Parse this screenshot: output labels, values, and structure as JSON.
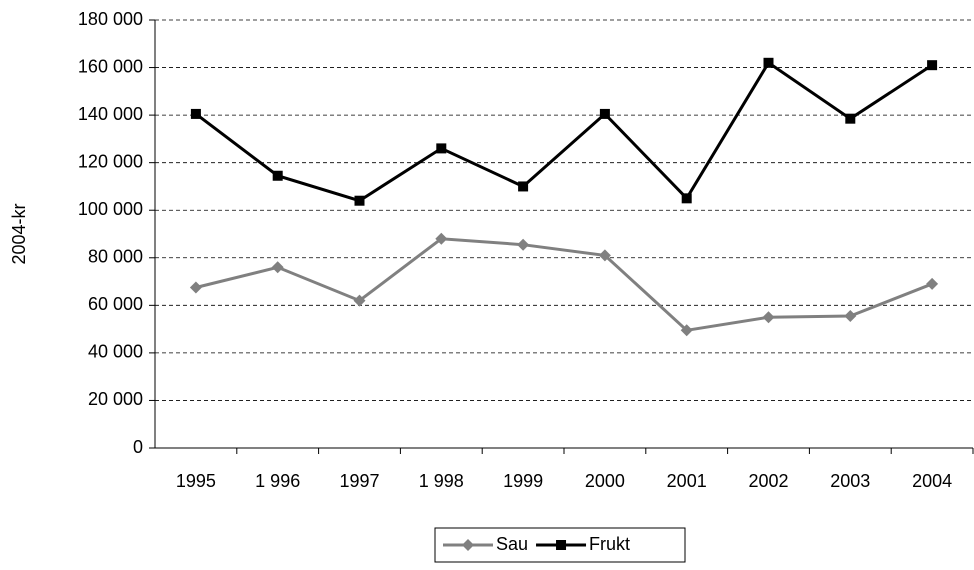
{
  "chart_data": {
    "type": "line",
    "y_label": "2004-kr",
    "categories": [
      "1995",
      "1 996",
      "1997",
      "1 998",
      "1999",
      "2000",
      "2001",
      "2002",
      "2003",
      "2004"
    ],
    "series": [
      {
        "name": "Sau",
        "color": "#808080",
        "marker": "diamond",
        "values": [
          67500,
          76000,
          62000,
          88000,
          85500,
          81000,
          49500,
          55000,
          55500,
          69000
        ]
      },
      {
        "name": "Frukt",
        "color": "#000000",
        "marker": "square",
        "values": [
          140500,
          114500,
          104000,
          126000,
          110000,
          140500,
          105000,
          162000,
          138500,
          161000
        ]
      }
    ],
    "ylim": [
      0,
      180000
    ],
    "yticks": [
      0,
      {
        "value": 20000,
        "label": "20 000"
      },
      {
        "value": 40000,
        "label": "40 000"
      },
      {
        "value": 60000,
        "label": "60 000"
      },
      {
        "value": 80000,
        "label": "80 000"
      },
      {
        "value": 100000,
        "label": "100 000"
      },
      {
        "value": 120000,
        "label": "120 000"
      },
      {
        "value": 140000,
        "label": "140 000"
      },
      {
        "value": 160000,
        "label": "160 000"
      },
      {
        "value": 180000,
        "label": "180 000"
      }
    ],
    "grid": true,
    "legend": "bottom"
  }
}
